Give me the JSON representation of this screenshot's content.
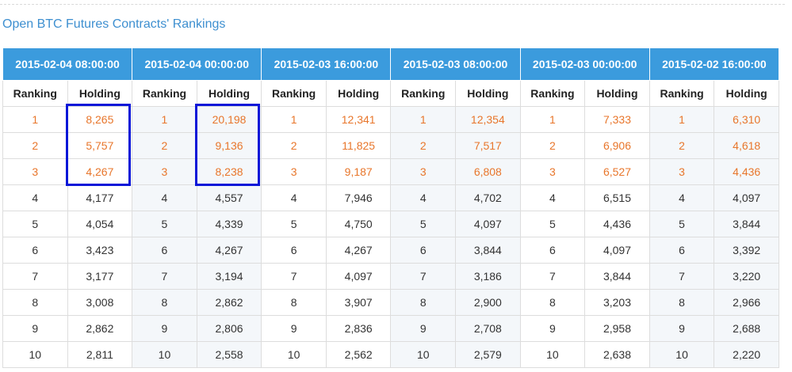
{
  "title": "Open BTC Futures Contracts' Rankings",
  "columns": {
    "ranking_label": "Ranking",
    "holding_label": "Holding"
  },
  "periods": [
    "2015-02-04 08:00:00",
    "2015-02-04 00:00:00",
    "2015-02-03 16:00:00",
    "2015-02-03 08:00:00",
    "2015-02-03 00:00:00",
    "2015-02-02 16:00:00"
  ],
  "rows": [
    {
      "rank": "1",
      "holdings": [
        "8,265",
        "20,198",
        "12,341",
        "12,354",
        "7,333",
        "6,310"
      ]
    },
    {
      "rank": "2",
      "holdings": [
        "5,757",
        "9,136",
        "11,825",
        "7,517",
        "6,906",
        "4,618"
      ]
    },
    {
      "rank": "3",
      "holdings": [
        "4,267",
        "8,238",
        "9,187",
        "6,808",
        "6,527",
        "4,436"
      ]
    },
    {
      "rank": "4",
      "holdings": [
        "4,177",
        "4,557",
        "7,946",
        "4,702",
        "6,515",
        "4,097"
      ]
    },
    {
      "rank": "5",
      "holdings": [
        "4,054",
        "4,339",
        "4,750",
        "4,097",
        "4,436",
        "3,844"
      ]
    },
    {
      "rank": "6",
      "holdings": [
        "3,423",
        "4,267",
        "4,267",
        "3,844",
        "4,097",
        "3,392"
      ]
    },
    {
      "rank": "7",
      "holdings": [
        "3,177",
        "3,194",
        "4,097",
        "3,186",
        "3,844",
        "3,220"
      ]
    },
    {
      "rank": "8",
      "holdings": [
        "3,008",
        "2,862",
        "3,907",
        "2,900",
        "3,203",
        "2,966"
      ]
    },
    {
      "rank": "9",
      "holdings": [
        "2,862",
        "2,806",
        "2,836",
        "2,708",
        "2,958",
        "2,688"
      ]
    },
    {
      "rank": "10",
      "holdings": [
        "2,811",
        "2,558",
        "2,562",
        "2,579",
        "2,638",
        "2,220"
      ]
    }
  ],
  "colors": {
    "header_bg": "#3b9bdd",
    "title": "#3d8fd0",
    "top_rank_text": "#e8762b",
    "highlight_border": "#0a17d8"
  }
}
